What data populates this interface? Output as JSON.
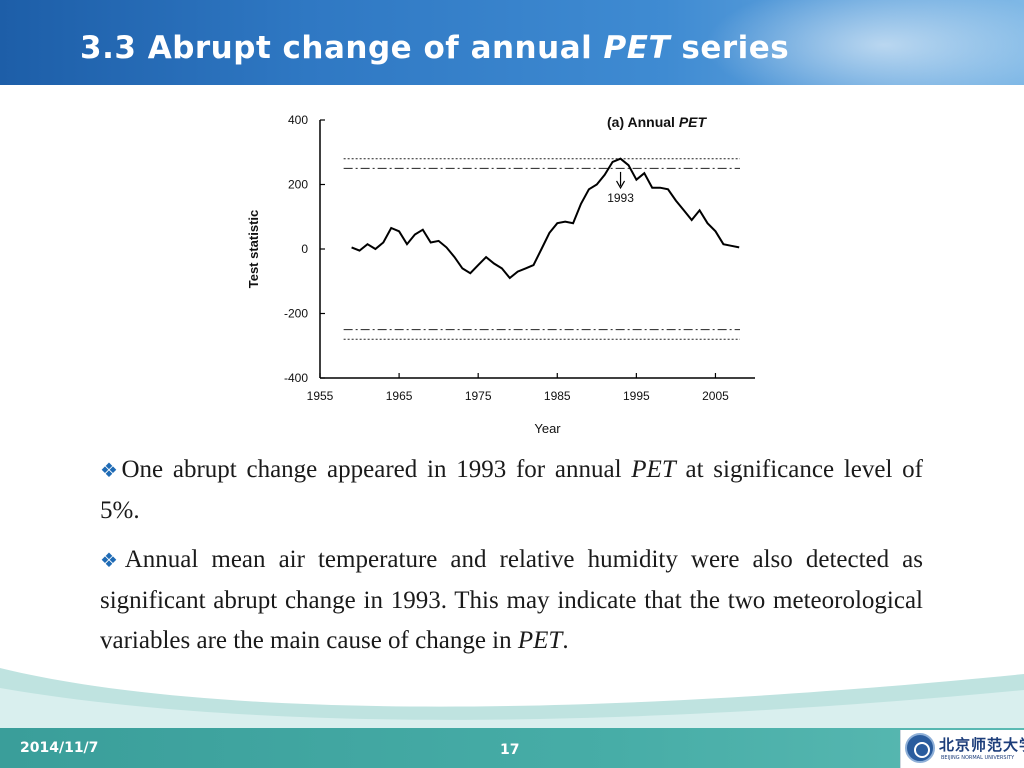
{
  "slide": {
    "title_main": "3.3 Abrupt change of annual ",
    "title_em": "PET",
    "title_tail": " series"
  },
  "bullets": {
    "icon": "diamond-bullet-icon",
    "b1_text": "One abrupt change appeared in 1993 for annual ",
    "b1_em": "PET",
    "b1_tail": " at significance level of 5%.",
    "b2_text": "Annual mean air temperature and relative humidity were also detected as significant abrupt change in 1993. This may indicate that the two meteorological variables are the main cause of change in ",
    "b2_em": "PET",
    "b2_tail": "."
  },
  "footer": {
    "date": "2014/11/7",
    "page": "17",
    "logo_cn": "北京师范大学",
    "logo_en": "BEIJING NORMAL UNIVERSITY"
  },
  "colors": {
    "header_blue": "#2f78c3",
    "footer_teal": "#47ada7",
    "bullet_blue": "#1f6bb5"
  },
  "chart_data": {
    "type": "line",
    "title_prefix": "(a) Annual ",
    "title_em": "PET",
    "xlabel": "Year",
    "ylabel": "Test statistic",
    "xlim": [
      1955,
      2010
    ],
    "ylim": [
      -400,
      400
    ],
    "xticks": [
      1955,
      1965,
      1975,
      1985,
      1995,
      2005
    ],
    "yticks": [
      400,
      200,
      0,
      -200,
      -400
    ],
    "grid": false,
    "threshold_lines": [
      {
        "style": "dotted",
        "value": 280
      },
      {
        "style": "dash-dot",
        "value": 250
      },
      {
        "style": "dash-dot",
        "value": -250
      },
      {
        "style": "dotted",
        "value": -280
      }
    ],
    "annotation": {
      "label": "1993",
      "x": 1993,
      "y": 270
    },
    "series": [
      {
        "x": [
          1959,
          1960,
          1961,
          1962,
          1963,
          1964,
          1965,
          1966,
          1967,
          1968,
          1969,
          1970,
          1971,
          1972,
          1973,
          1974,
          1975,
          1976,
          1977,
          1978,
          1979,
          1980,
          1981,
          1982,
          1983,
          1984,
          1985,
          1986,
          1987,
          1988,
          1989,
          1990,
          1991,
          1992,
          1993,
          1994,
          1995,
          1996,
          1997,
          1998,
          1999,
          2000,
          2001,
          2002,
          2003,
          2004,
          2005,
          2006,
          2007,
          2008
        ],
        "y": [
          5,
          -5,
          15,
          0,
          20,
          65,
          55,
          15,
          45,
          60,
          20,
          25,
          5,
          -25,
          -60,
          -75,
          -50,
          -25,
          -45,
          -60,
          -90,
          -70,
          -60,
          -50,
          0,
          50,
          80,
          85,
          80,
          140,
          185,
          200,
          230,
          270,
          280,
          260,
          215,
          235,
          190,
          190,
          185,
          150,
          120,
          90,
          120,
          80,
          55,
          15,
          10,
          5
        ]
      }
    ]
  }
}
